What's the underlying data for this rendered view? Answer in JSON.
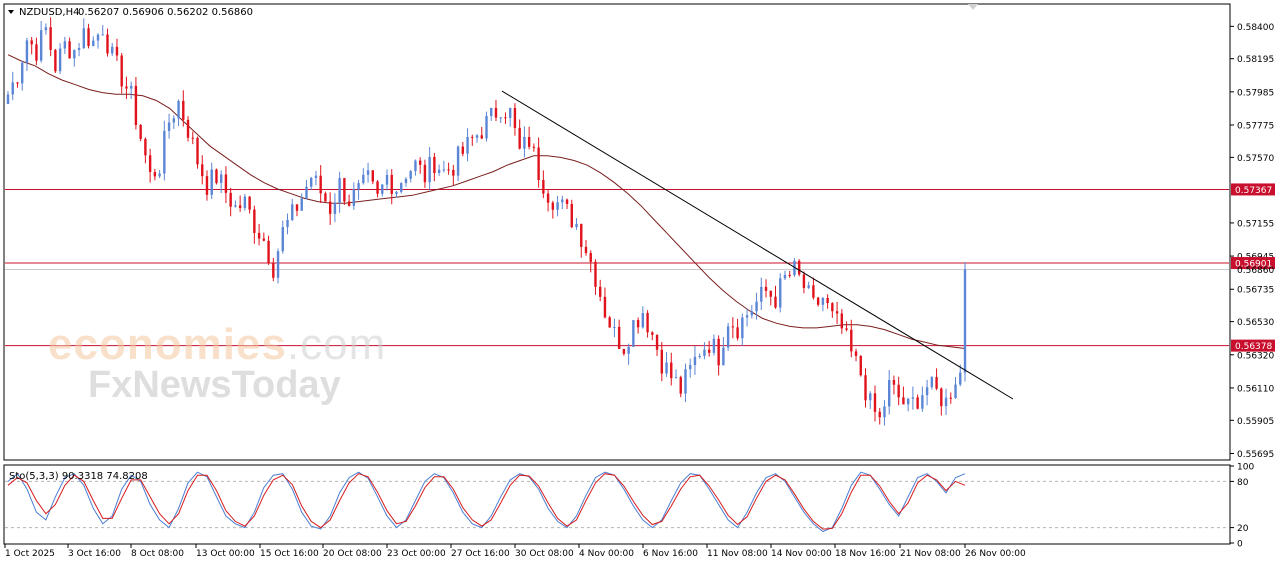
{
  "header": {
    "symbol_label": "NZDUSD,H4",
    "ohlc_text": "0.56207 0.56906 0.56202 0.56860"
  },
  "watermark": {
    "brand_main": "economies",
    "brand_tld": ".com",
    "brand_sub": "FxNewsToday"
  },
  "colors": {
    "bull": "#5b86d6",
    "bear": "#e0121b",
    "ma": "#7a1e1e",
    "hline": "#c8102e",
    "trend": "#000000",
    "stoch_main": "#4a7fd4",
    "stoch_signal": "#d81b1b"
  },
  "price_axis": {
    "ticks": [
      "0.58400",
      "0.58195",
      "0.57985",
      "0.57775",
      "0.57570",
      "0.57155",
      "0.56945",
      "0.56735",
      "0.56530",
      "0.56320",
      "0.56110",
      "0.55905",
      "0.55695"
    ],
    "ylim": [
      0.5566,
      0.58535
    ]
  },
  "levels": [
    {
      "value": 0.57367,
      "label": "0.57367"
    },
    {
      "value": 0.56901,
      "label": "0.56901"
    },
    {
      "value": 0.5686,
      "label": "0.56860",
      "current": true
    },
    {
      "value": 0.56378,
      "label": "0.56378"
    }
  ],
  "time_axis": {
    "labels": [
      "1 Oct 2025",
      "3 Oct 16:00",
      "8 Oct 08:00",
      "13 Oct 00:00",
      "15 Oct 16:00",
      "20 Oct 08:00",
      "23 Oct 00:00",
      "27 Oct 16:00",
      "30 Oct 08:00",
      "4 Nov 00:00",
      "6 Nov 16:00",
      "11 Nov 08:00",
      "14 Nov 00:00",
      "18 Nov 16:00",
      "21 Nov 08:00",
      "26 Nov 00:00"
    ]
  },
  "stochastic": {
    "label": "Sto(5,3,3) 90.3318 74.8208",
    "ticks": [
      "100",
      "80",
      "20",
      "0"
    ],
    "ylim": [
      0,
      100
    ],
    "levels": [
      80,
      20
    ]
  },
  "chart_data": {
    "type": "candlestick",
    "series_close_path": [
      0.5797,
      0.581,
      0.5832,
      0.5825,
      0.5838,
      0.5815,
      0.5828,
      0.5825,
      0.5836,
      0.583,
      0.584,
      0.582,
      0.5808,
      0.5795,
      0.577,
      0.5745,
      0.5752,
      0.578,
      0.5792,
      0.5775,
      0.5755,
      0.574,
      0.5745,
      0.5735,
      0.5725,
      0.5728,
      0.5715,
      0.5705,
      0.5688,
      0.571,
      0.572,
      0.5732,
      0.5745,
      0.5735,
      0.5725,
      0.574,
      0.573,
      0.5735,
      0.5742,
      0.573,
      0.5745,
      0.5738,
      0.5748,
      0.5752,
      0.5745,
      0.5755,
      0.5748,
      0.5752,
      0.576,
      0.5768,
      0.5775,
      0.5782,
      0.579,
      0.5785,
      0.576,
      0.5768,
      0.5748,
      0.5735,
      0.5728,
      0.5722,
      0.5715,
      0.57,
      0.5682,
      0.566,
      0.5645,
      0.5638,
      0.5652,
      0.566,
      0.5645,
      0.5628,
      0.5618,
      0.561,
      0.5622,
      0.5635,
      0.564,
      0.5632,
      0.5655,
      0.565,
      0.5658,
      0.5665,
      0.5672,
      0.5668,
      0.568,
      0.5685,
      0.5675,
      0.5662,
      0.5668,
      0.5655,
      0.5648,
      0.5632,
      0.562,
      0.56,
      0.559,
      0.5612,
      0.5605,
      0.5598,
      0.5605,
      0.5612,
      0.5608,
      0.5602,
      0.5618,
      0.5686
    ],
    "moving_average": {
      "name": "",
      "values": [
        0.5822,
        0.5818,
        0.5815,
        0.581,
        0.5806,
        0.5803,
        0.58,
        0.5798,
        0.5797,
        0.5797,
        0.5796,
        0.5793,
        0.5788,
        0.578,
        0.5772,
        0.5764,
        0.5758,
        0.5752,
        0.5746,
        0.5741,
        0.5737,
        0.5734,
        0.5731,
        0.5729,
        0.5728,
        0.5728,
        0.5729,
        0.573,
        0.5731,
        0.5732,
        0.5733,
        0.5735,
        0.5737,
        0.5739,
        0.5742,
        0.5745,
        0.5748,
        0.5752,
        0.5755,
        0.5758,
        0.5758,
        0.5757,
        0.5755,
        0.5752,
        0.5747,
        0.5741,
        0.5734,
        0.5726,
        0.5717,
        0.5708,
        0.5699,
        0.569,
        0.5681,
        0.5673,
        0.5666,
        0.566,
        0.5655,
        0.5652,
        0.565,
        0.5649,
        0.5649,
        0.565,
        0.5651,
        0.5651,
        0.565,
        0.5648,
        0.5645,
        0.5642,
        0.564,
        0.5638,
        0.5637,
        0.5636
      ]
    },
    "trendline": {
      "x": [
        0.0,
        1.0
      ],
      "y": [
        0.5799,
        0.5604
      ]
    },
    "stoch_main": [
      80,
      90,
      70,
      40,
      30,
      60,
      85,
      90,
      75,
      45,
      25,
      35,
      70,
      88,
      80,
      50,
      30,
      20,
      45,
      78,
      92,
      86,
      60,
      35,
      25,
      20,
      40,
      72,
      88,
      90,
      70,
      40,
      22,
      18,
      35,
      65,
      85,
      92,
      84,
      60,
      35,
      20,
      30,
      55,
      80,
      90,
      85,
      65,
      40,
      25,
      20,
      35,
      60,
      82,
      90,
      86,
      70,
      45,
      28,
      20,
      35,
      62,
      85,
      92,
      88,
      70,
      48,
      30,
      20,
      30,
      55,
      78,
      90,
      88,
      70,
      50,
      30,
      20,
      40,
      65,
      85,
      90,
      80,
      60,
      40,
      25,
      15,
      20,
      45,
      75,
      92,
      88,
      70,
      50,
      35,
      60,
      85,
      90,
      80,
      65,
      85,
      90
    ],
    "stoch_signal": [
      75,
      85,
      78,
      55,
      38,
      50,
      75,
      88,
      80,
      55,
      32,
      32,
      58,
      82,
      82,
      60,
      38,
      25,
      38,
      68,
      88,
      88,
      68,
      42,
      28,
      22,
      35,
      62,
      82,
      88,
      76,
      48,
      28,
      20,
      30,
      55,
      78,
      90,
      86,
      66,
      42,
      25,
      28,
      48,
      72,
      86,
      86,
      70,
      46,
      30,
      22,
      30,
      52,
      75,
      88,
      87,
      74,
      52,
      32,
      22,
      30,
      55,
      78,
      90,
      88,
      74,
      54,
      36,
      24,
      28,
      48,
      70,
      86,
      88,
      74,
      56,
      36,
      24,
      34,
      58,
      80,
      88,
      82,
      64,
      44,
      28,
      18,
      19,
      38,
      66,
      88,
      88,
      74,
      54,
      38,
      52,
      78,
      88,
      82,
      68,
      80,
      75
    ]
  }
}
